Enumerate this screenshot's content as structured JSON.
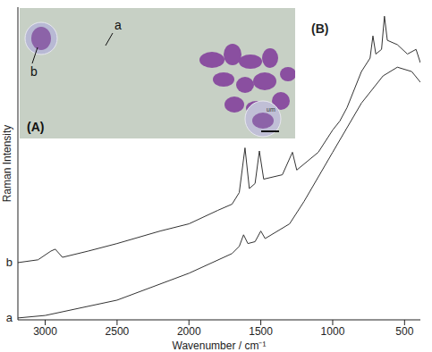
{
  "chart_data": {
    "type": "line",
    "x_label": "Wavenumber / cm⁻¹",
    "y_label": "Raman Intensity",
    "xlim": [
      3190,
      390
    ],
    "xticks": [
      3000,
      2500,
      2000,
      1500,
      1000,
      500
    ],
    "ylim": [
      0,
      100
    ],
    "yticks": [],
    "tick_labels": "x",
    "grid": false,
    "annotations": [
      "(B)"
    ],
    "series": [
      {
        "name": "a",
        "color": "#333333",
        "x": [
          3190,
          3000,
          2500,
          2000,
          1700,
          1650,
          1620,
          1590,
          1540,
          1500,
          1470,
          1300,
          1200,
          1000,
          800,
          650,
          550,
          450,
          390
        ],
        "values": [
          0.6,
          1.4,
          6.3,
          14.9,
          21.2,
          23.5,
          27.2,
          24.4,
          25.0,
          28.4,
          26.0,
          30.7,
          37.8,
          53.6,
          69.3,
          78.0,
          80.8,
          79.4,
          76.0
        ]
      },
      {
        "name": "b",
        "color": "#333333",
        "x": [
          3190,
          3050,
          2960,
          2930,
          2880,
          2700,
          2500,
          2200,
          2000,
          1800,
          1700,
          1650,
          1610,
          1580,
          1540,
          1510,
          1480,
          1350,
          1280,
          1250,
          1100,
          1000,
          950,
          900,
          800,
          740,
          720,
          700,
          660,
          640,
          620,
          550,
          480,
          420,
          390
        ],
        "values": [
          18.3,
          19.2,
          22.0,
          22.6,
          20.0,
          22.0,
          24.4,
          28.4,
          30.7,
          35.0,
          37.0,
          40.7,
          55.0,
          42.0,
          43.6,
          54.0,
          45.0,
          46.4,
          53.6,
          47.9,
          53.6,
          60.7,
          63.6,
          67.9,
          79.4,
          83.7,
          90.8,
          85.0,
          86.5,
          97.1,
          89.4,
          88.0,
          85.0,
          86.5,
          82.2
        ]
      }
    ],
    "inset": {
      "type": "image",
      "panel_label": "(A)",
      "point_labels": [
        "a",
        "b"
      ],
      "scale_bar_label": "um"
    }
  }
}
